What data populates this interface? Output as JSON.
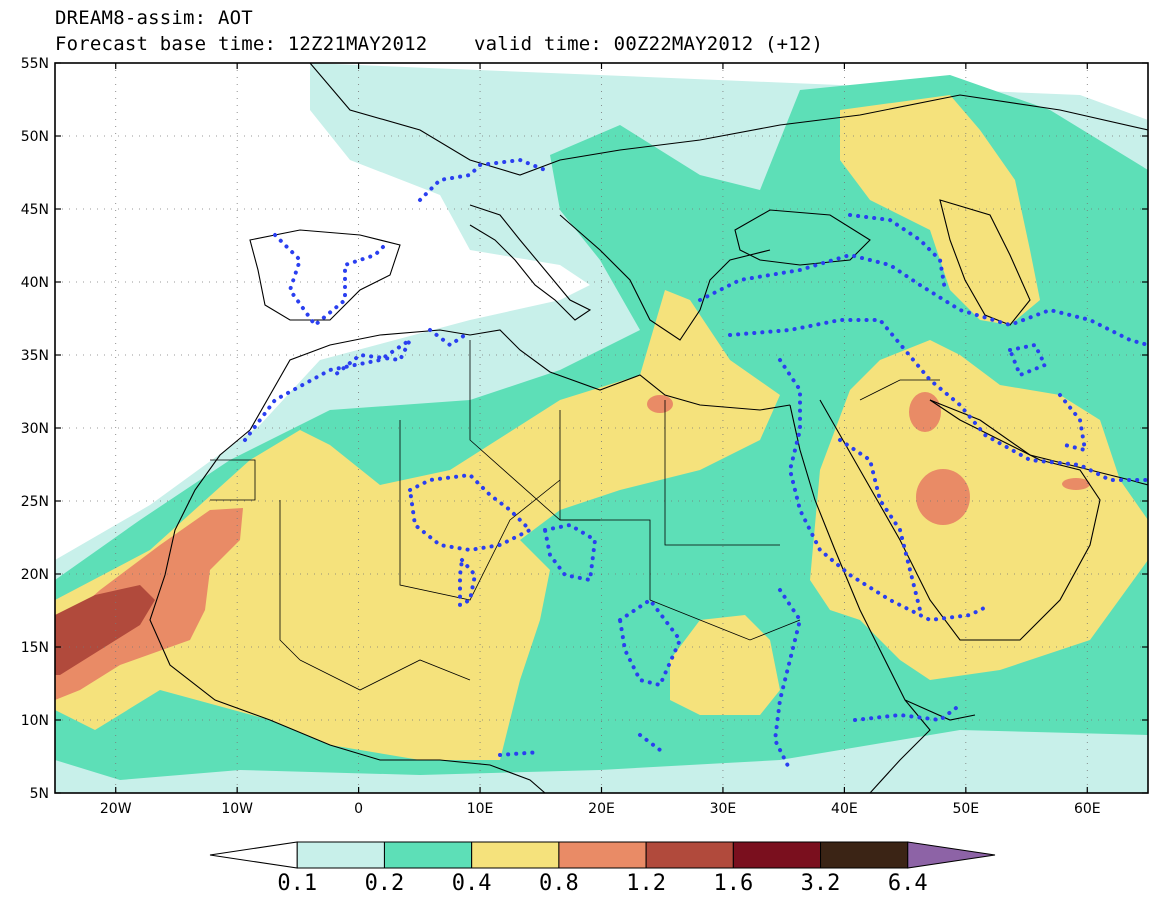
{
  "title": {
    "line1": "DREAM8-assim: AOT",
    "base_time": "Forecast base time: 12Z21MAY2012",
    "valid_time": "valid time: 00Z22MAY2012 (+12)"
  },
  "map": {
    "lat_labels": [
      "55N",
      "50N",
      "45N",
      "40N",
      "35N",
      "30N",
      "25N",
      "20N",
      "15N",
      "10N",
      "5N"
    ],
    "lon_labels": [
      "20W",
      "10W",
      "0",
      "10E",
      "20E",
      "30E",
      "40E",
      "50E",
      "60E"
    ],
    "lon_range": [
      -25,
      65
    ],
    "lat_range": [
      5,
      55
    ],
    "grid": "dotted",
    "overlay": "blue dotted contours"
  },
  "colorbar": {
    "labels": [
      "0.1",
      "0.2",
      "0.4",
      "0.8",
      "1.2",
      "1.6",
      "3.2",
      "6.4"
    ],
    "colors": [
      "#ffffff",
      "#c8f0ea",
      "#5ddfb7",
      "#f5e27c",
      "#e98b66",
      "#b14a3c",
      "#7a0f1e",
      "#3b2415",
      "#8d63a6"
    ]
  },
  "colors": {
    "land_lines": "#000000",
    "contour": "#2a3ff0",
    "level_0_1": "#c8f0ea",
    "level_0_2": "#5ddfb7",
    "level_0_4": "#f5e27c",
    "level_0_8": "#e98b66",
    "level_1_2": "#b14a3c"
  }
}
